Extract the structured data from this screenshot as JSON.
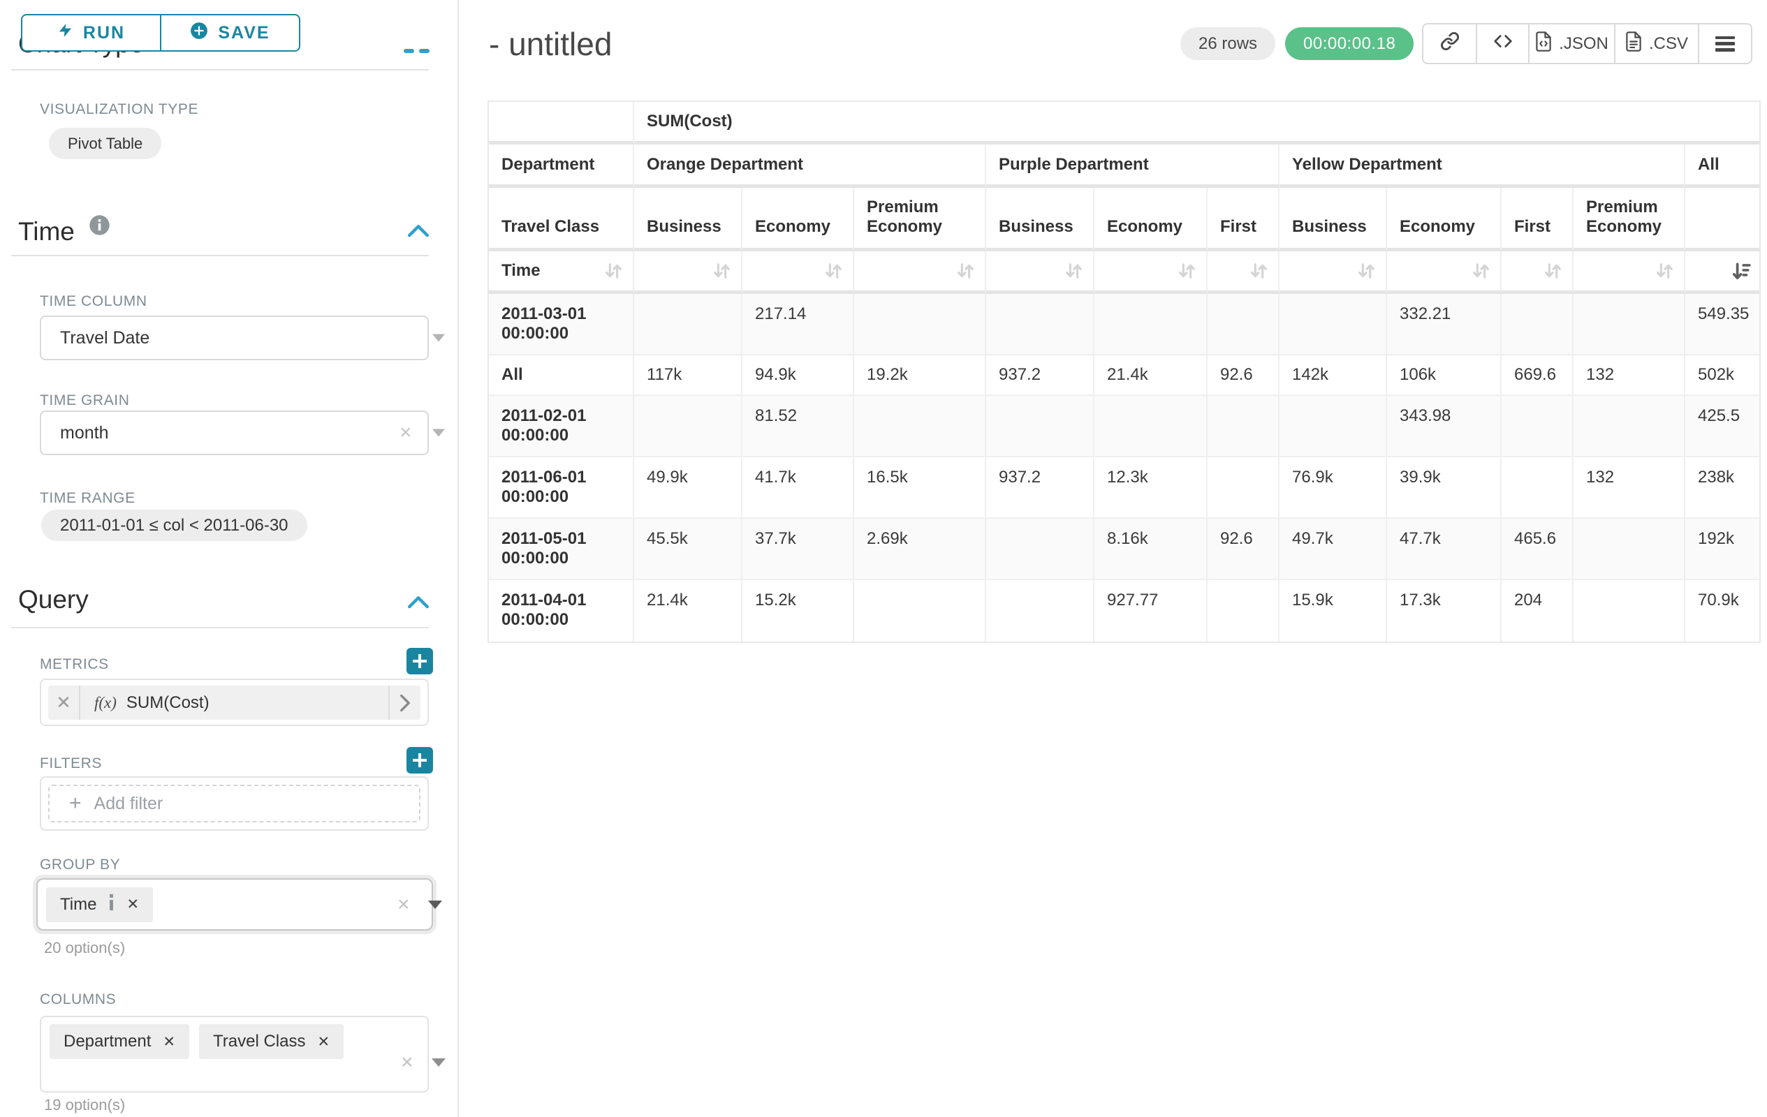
{
  "colors": {
    "teal": "#1a85a0",
    "blue": "#2ea1cd",
    "green": "#5ac189"
  },
  "sidebar": {
    "run_label": "RUN",
    "save_label": "SAVE",
    "clipped_heading": "Chart Type",
    "viz_label": "VISUALIZATION TYPE",
    "viz_value": "Pivot Table",
    "time_title": "Time",
    "time_column_label": "TIME COLUMN",
    "time_column_value": "Travel Date",
    "time_grain_label": "TIME GRAIN",
    "time_grain_value": "month",
    "time_range_label": "TIME RANGE",
    "time_range_value": "2011-01-01 ≤ col < 2011-06-30",
    "query_title": "Query",
    "metrics_label": "METRICS",
    "metric_fx": "f(x)",
    "metric_value": "SUM(Cost)",
    "filters_label": "FILTERS",
    "add_filter_label": "Add filter",
    "group_by_label": "GROUP BY",
    "group_by_items": [
      "Time"
    ],
    "group_by_options": "20 option(s)",
    "columns_label": "COLUMNS",
    "columns_items": [
      "Department",
      "Travel Class"
    ],
    "columns_options": "19 option(s)"
  },
  "header": {
    "title": "- untitled",
    "rows_badge": "26 rows",
    "timer": "00:00:00.18",
    "export_json": ".JSON",
    "export_csv": ".CSV"
  },
  "pivot": {
    "metric_header": "SUM(Cost)",
    "department_label": "Department",
    "travel_class_label": "Travel Class",
    "time_label": "Time",
    "groups": [
      {
        "name": "Orange Department",
        "classes": [
          "Business",
          "Economy",
          "Premium Economy"
        ]
      },
      {
        "name": "Purple Department",
        "classes": [
          "Business",
          "Economy",
          "First"
        ]
      },
      {
        "name": "Yellow Department",
        "classes": [
          "Business",
          "Economy",
          "First",
          "Premium Economy"
        ]
      },
      {
        "name": "All",
        "classes": [
          ""
        ]
      }
    ],
    "rows": [
      {
        "label": "2011-03-01 00:00:00",
        "values": [
          "",
          "217.14",
          "",
          "",
          "",
          "",
          "",
          "332.21",
          "",
          "",
          "549.35"
        ]
      },
      {
        "label": "All",
        "values": [
          "117k",
          "94.9k",
          "19.2k",
          "937.2",
          "21.4k",
          "92.6",
          "142k",
          "106k",
          "669.6",
          "132",
          "502k"
        ]
      },
      {
        "label": "2011-02-01 00:00:00",
        "values": [
          "",
          "81.52",
          "",
          "",
          "",
          "",
          "",
          "343.98",
          "",
          "",
          "425.5"
        ]
      },
      {
        "label": "2011-06-01 00:00:00",
        "values": [
          "49.9k",
          "41.7k",
          "16.5k",
          "937.2",
          "12.3k",
          "",
          "76.9k",
          "39.9k",
          "",
          "132",
          "238k"
        ]
      },
      {
        "label": "2011-05-01 00:00:00",
        "values": [
          "45.5k",
          "37.7k",
          "2.69k",
          "",
          "8.16k",
          "92.6",
          "49.7k",
          "47.7k",
          "465.6",
          "",
          "192k"
        ]
      },
      {
        "label": "2011-04-01 00:00:00",
        "values": [
          "21.4k",
          "15.2k",
          "",
          "",
          "927.77",
          "",
          "15.9k",
          "17.3k",
          "204",
          "",
          "70.9k"
        ]
      }
    ]
  }
}
